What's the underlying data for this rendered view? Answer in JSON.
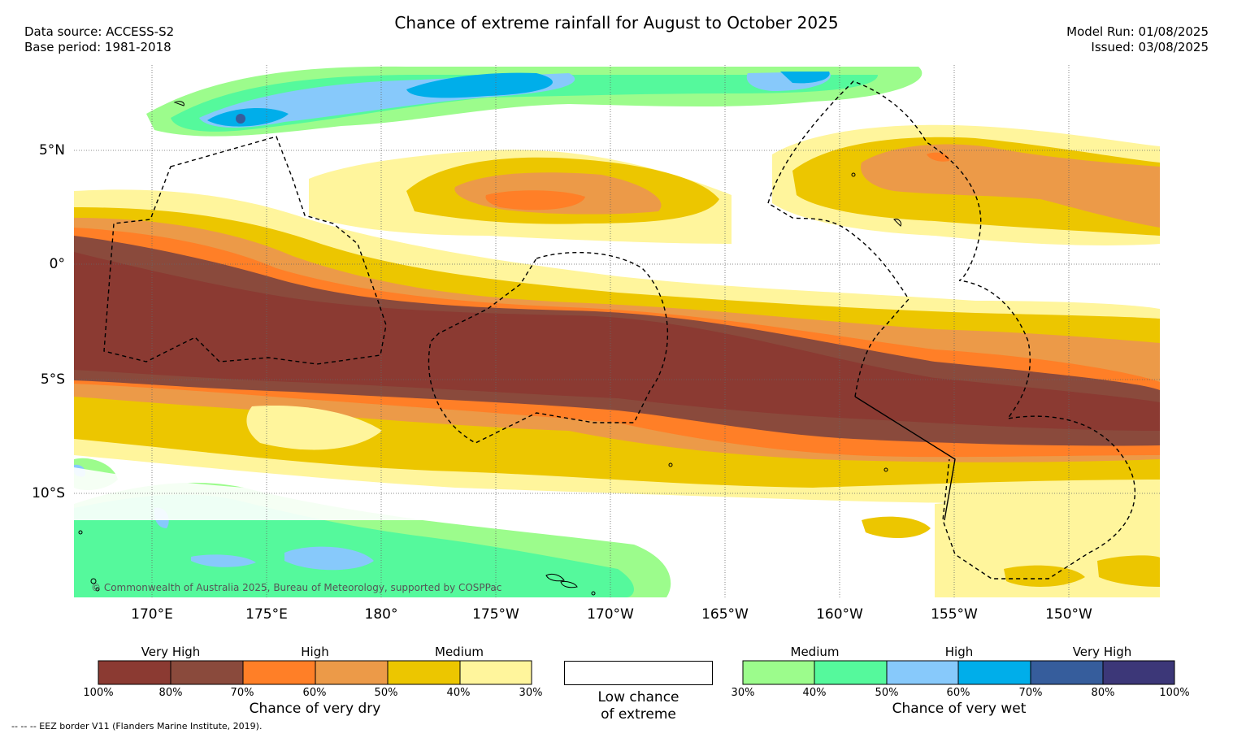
{
  "title": "Chance of extreme rainfall for August to October 2025",
  "meta_left": {
    "source": "Data source: ACCESS-S2",
    "base": "Base period: 1981-2018"
  },
  "meta_right": {
    "model_run": "Model Run: 01/08/2025",
    "issued": "Issued: 03/08/2025"
  },
  "lat_labels": [
    "5°N",
    "0°",
    "5°S",
    "10°S"
  ],
  "lon_labels": [
    "170°E",
    "175°E",
    "180°",
    "175°W",
    "170°W",
    "165°W",
    "160°W",
    "155°W",
    "150°W"
  ],
  "copyright": "© Commonwealth of Australia 2025, Bureau of Meteorology, supported by COSPPac",
  "legend": {
    "dry": {
      "groups": [
        "Very High",
        "High",
        "Medium"
      ],
      "colors": [
        "#8b3a32",
        "#8a4a3c",
        "#ff7f27",
        "#ec9a48",
        "#ecc600",
        "#fff59c"
      ],
      "ticks": [
        "100%",
        "80%",
        "70%",
        "60%",
        "50%",
        "40%",
        "30%"
      ],
      "caption": "Chance of very dry"
    },
    "low": {
      "line1": "Low chance",
      "line2": "of extreme"
    },
    "wet": {
      "groups": [
        "Medium",
        "High",
        "Very High"
      ],
      "colors": [
        "#9cfc8c",
        "#55f99c",
        "#87c9fb",
        "#00aeea",
        "#365d9c",
        "#3c3778"
      ],
      "ticks": [
        "30%",
        "40%",
        "50%",
        "60%",
        "70%",
        "80%",
        "100%"
      ],
      "caption": "Chance of very wet"
    }
  },
  "footnote": "-- -- -- EEZ border V11 (Flanders Marine Institute, 2019)."
}
